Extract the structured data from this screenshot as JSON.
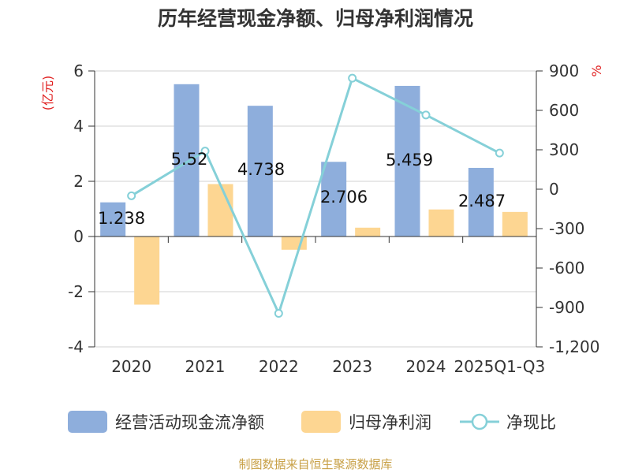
{
  "chart_data": {
    "type": "bar",
    "title": "历年经营现金净额、归母净利润情况",
    "categories": [
      "2020",
      "2021",
      "2022",
      "2023",
      "2024",
      "2025Q1-Q3"
    ],
    "y_left": {
      "label": "(亿元)",
      "range": [
        -4,
        6
      ],
      "ticks": [
        "-4",
        "-2",
        "0",
        "2",
        "4",
        "6"
      ],
      "tick_values": [
        -4,
        -2,
        0,
        2,
        4,
        6
      ]
    },
    "y_right": {
      "label": "%",
      "range": [
        -1200,
        900
      ],
      "ticks": [
        "-1,200",
        "-900",
        "-600",
        "-300",
        "0",
        "300",
        "600",
        "900"
      ],
      "tick_values": [
        -1200,
        -900,
        -600,
        -300,
        0,
        300,
        600,
        900
      ]
    },
    "series": [
      {
        "name": "经营活动现金流净额",
        "type": "bar",
        "axis": "left",
        "color": "#8eaedc",
        "values": [
          1.238,
          5.52,
          4.738,
          2.706,
          5.459,
          2.487
        ],
        "labels": [
          "1.238",
          "5.52",
          "4.738",
          "2.706",
          "5.459",
          "2.487"
        ]
      },
      {
        "name": "归母净利润",
        "type": "bar",
        "axis": "left",
        "color": "#fdd692",
        "values": [
          -2.47,
          1.9,
          -0.48,
          0.32,
          0.98,
          0.89
        ]
      },
      {
        "name": "净现比",
        "type": "line",
        "axis": "right",
        "color": "#85d0d8",
        "values": [
          -50,
          290,
          -945,
          845,
          565,
          275
        ]
      }
    ],
    "legend_position": "bottom",
    "source": "制图数据来自恒生聚源数据库"
  }
}
